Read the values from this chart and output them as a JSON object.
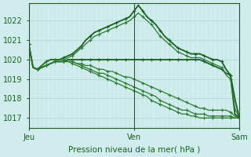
{
  "bg_color": "#d0ecec",
  "grid_color": "#a8d8d0",
  "line_color_dark": "#1a6020",
  "line_color_mid": "#2a7a30",
  "xlabel": "Pression niveau de la mer( hPa )",
  "xtick_labels": [
    "Jeu",
    "Ven",
    "Sam"
  ],
  "xtick_positions": [
    0,
    24,
    48
  ],
  "ylim": [
    1016.5,
    1022.9
  ],
  "yticks": [
    1017,
    1018,
    1019,
    1020,
    1021,
    1022
  ],
  "n_points": 49,
  "series": [
    {
      "name": "flat_1020",
      "values": [
        1020.8,
        1019.6,
        1019.5,
        1019.6,
        1019.7,
        1019.8,
        1019.9,
        1019.9,
        1019.9,
        1020.0,
        1020.0,
        1020.0,
        1020.0,
        1020.0,
        1020.0,
        1020.0,
        1020.0,
        1020.0,
        1020.0,
        1020.0,
        1020.0,
        1020.0,
        1020.0,
        1020.0,
        1020.0,
        1020.0,
        1020.0,
        1020.0,
        1020.0,
        1020.0,
        1020.0,
        1020.0,
        1020.0,
        1020.0,
        1020.0,
        1020.0,
        1020.0,
        1020.0,
        1020.0,
        1020.0,
        1019.9,
        1019.8,
        1019.7,
        1019.6,
        1019.5,
        1019.3,
        1019.2,
        1017.2,
        1017.0
      ],
      "color": "#1a6020",
      "lw": 1.3,
      "marker": true
    },
    {
      "name": "decline_1",
      "values": [
        1020.8,
        1019.6,
        1019.5,
        1019.6,
        1019.7,
        1019.8,
        1019.9,
        1019.9,
        1019.9,
        1019.9,
        1019.9,
        1019.8,
        1019.8,
        1019.7,
        1019.7,
        1019.6,
        1019.5,
        1019.5,
        1019.4,
        1019.4,
        1019.3,
        1019.2,
        1019.1,
        1019.1,
        1019.0,
        1018.9,
        1018.8,
        1018.7,
        1018.6,
        1018.5,
        1018.4,
        1018.3,
        1018.2,
        1018.1,
        1018.0,
        1017.9,
        1017.8,
        1017.7,
        1017.6,
        1017.5,
        1017.5,
        1017.4,
        1017.4,
        1017.4,
        1017.4,
        1017.4,
        1017.3,
        1017.1,
        1017.0
      ],
      "color": "#2a7a30",
      "lw": 0.9,
      "marker": true
    },
    {
      "name": "decline_2",
      "values": [
        1020.8,
        1019.6,
        1019.5,
        1019.6,
        1019.7,
        1019.8,
        1019.9,
        1019.9,
        1019.9,
        1019.9,
        1019.9,
        1019.8,
        1019.7,
        1019.6,
        1019.5,
        1019.4,
        1019.3,
        1019.3,
        1019.2,
        1019.1,
        1019.0,
        1018.9,
        1018.8,
        1018.7,
        1018.6,
        1018.5,
        1018.4,
        1018.3,
        1018.2,
        1018.1,
        1017.9,
        1017.8,
        1017.7,
        1017.6,
        1017.5,
        1017.4,
        1017.4,
        1017.3,
        1017.2,
        1017.2,
        1017.2,
        1017.1,
        1017.1,
        1017.1,
        1017.1,
        1017.1,
        1017.1,
        1017.0,
        1017.0
      ],
      "color": "#2a7a30",
      "lw": 0.9,
      "marker": true
    },
    {
      "name": "decline_3",
      "values": [
        1020.8,
        1019.6,
        1019.5,
        1019.6,
        1019.7,
        1019.8,
        1019.9,
        1019.9,
        1019.9,
        1019.9,
        1019.8,
        1019.7,
        1019.6,
        1019.5,
        1019.4,
        1019.3,
        1019.2,
        1019.1,
        1019.0,
        1018.9,
        1018.8,
        1018.7,
        1018.6,
        1018.5,
        1018.4,
        1018.3,
        1018.2,
        1018.1,
        1017.9,
        1017.8,
        1017.7,
        1017.6,
        1017.5,
        1017.4,
        1017.3,
        1017.2,
        1017.2,
        1017.1,
        1017.1,
        1017.0,
        1017.0,
        1017.0,
        1017.0,
        1017.0,
        1017.0,
        1017.0,
        1017.0,
        1017.0,
        1017.0
      ],
      "color": "#2a7a30",
      "lw": 0.9,
      "marker": true
    },
    {
      "name": "peak_high",
      "values": [
        1020.8,
        1019.6,
        1019.5,
        1019.7,
        1019.9,
        1020.0,
        1020.0,
        1020.0,
        1020.1,
        1020.2,
        1020.3,
        1020.5,
        1020.7,
        1021.0,
        1021.2,
        1021.4,
        1021.5,
        1021.6,
        1021.7,
        1021.8,
        1021.9,
        1022.0,
        1022.1,
        1022.2,
        1022.5,
        1022.8,
        1022.5,
        1022.2,
        1022.0,
        1021.8,
        1021.5,
        1021.2,
        1021.0,
        1020.8,
        1020.6,
        1020.5,
        1020.4,
        1020.3,
        1020.3,
        1020.3,
        1020.2,
        1020.1,
        1020.0,
        1020.0,
        1019.9,
        1019.5,
        1019.2,
        1018.0,
        1017.0
      ],
      "color": "#1a6020",
      "lw": 1.3,
      "marker": true
    },
    {
      "name": "peak_medium",
      "values": [
        1020.8,
        1019.6,
        1019.5,
        1019.7,
        1019.9,
        1020.0,
        1020.0,
        1020.0,
        1020.0,
        1020.1,
        1020.2,
        1020.4,
        1020.6,
        1020.8,
        1021.0,
        1021.2,
        1021.3,
        1021.4,
        1021.5,
        1021.6,
        1021.7,
        1021.8,
        1021.9,
        1022.0,
        1022.2,
        1022.4,
        1022.2,
        1022.0,
        1021.8,
        1021.5,
        1021.2,
        1021.0,
        1020.8,
        1020.6,
        1020.4,
        1020.3,
        1020.2,
        1020.1,
        1020.1,
        1020.1,
        1020.0,
        1019.9,
        1019.8,
        1019.7,
        1019.6,
        1019.2,
        1019.0,
        1017.5,
        1017.0
      ],
      "color": "#2a7a30",
      "lw": 0.9,
      "marker": true
    }
  ]
}
